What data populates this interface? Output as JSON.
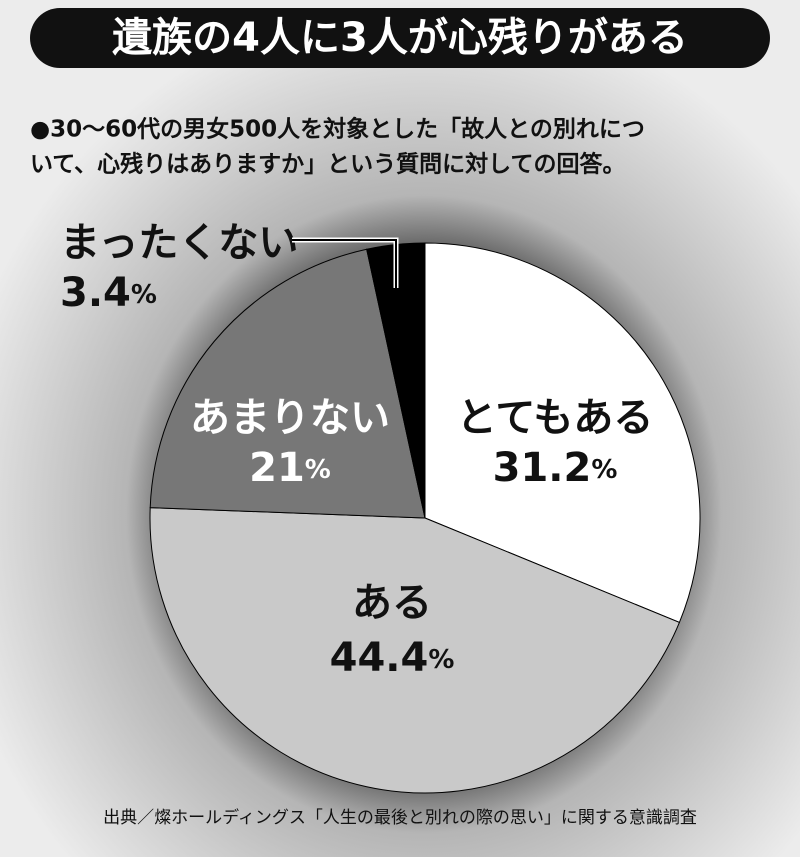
{
  "chart_data": {
    "type": "pie",
    "title": "遺族の4人に3人が心残りがある",
    "subtitle": [
      "●30～60代の男女500人を対象とした「故人との別れにつ",
      "いて、心残りはありますか」という質問に対しての回答。"
    ],
    "categories": [
      "とてもある",
      "ある",
      "あまりない",
      "まったくない"
    ],
    "values": [
      31.2,
      44.4,
      21,
      3.4
    ],
    "value_labels": [
      "31.2%",
      "44.4%",
      "21%",
      "3.4%"
    ],
    "colors": [
      "#ffffff",
      "#c9c9c9",
      "#777777",
      "#000000"
    ],
    "source": "出典／燦ホールディングス「人生の最後と別れの際の思い」に関する意識調査"
  }
}
